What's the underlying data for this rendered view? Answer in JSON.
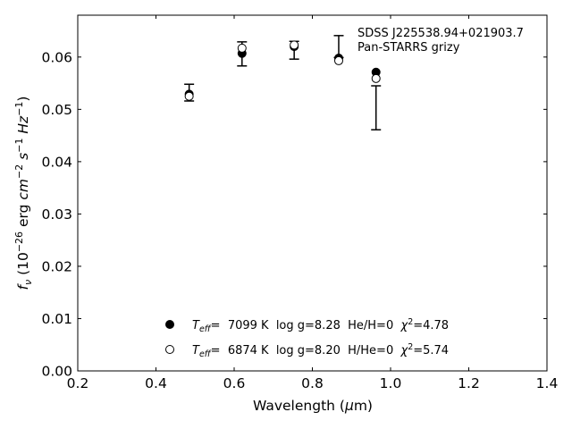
{
  "chart_data": {
    "type": "scatter",
    "annotation": [
      "SDSS J225538.94+021903.7",
      "Pan-STARRS grizy"
    ],
    "xlim": [
      0.2,
      1.4
    ],
    "ylim": [
      0.0,
      0.068
    ],
    "xticks": [
      "0.2",
      "0.4",
      "0.6",
      "0.8",
      "1.0",
      "1.2",
      "1.4"
    ],
    "yticks": [
      "0.00",
      "0.01",
      "0.02",
      "0.03",
      "0.04",
      "0.05",
      "0.06"
    ],
    "grid": false,
    "legend_position": "bottom-center",
    "observed": {
      "x": [
        0.4849,
        0.6201,
        0.7535,
        0.8674,
        0.9628
      ],
      "y": [
        0.0532,
        0.0606,
        0.0613,
        0.062,
        0.0503
      ],
      "yerr": [
        0.0016,
        0.0023,
        0.0017,
        0.0021,
        0.0042
      ]
    },
    "series": [
      {
        "marker": "filled-circle",
        "x": [
          0.4849,
          0.6201,
          0.7535,
          0.8674,
          0.9628
        ],
        "y": [
          0.0529,
          0.0607,
          0.062,
          0.0598,
          0.0571
        ]
      },
      {
        "marker": "open-circle",
        "x": [
          0.4849,
          0.6201,
          0.7535,
          0.8674,
          0.9628
        ],
        "y": [
          0.0525,
          0.0617,
          0.0623,
          0.0593,
          0.0559
        ]
      }
    ]
  }
}
